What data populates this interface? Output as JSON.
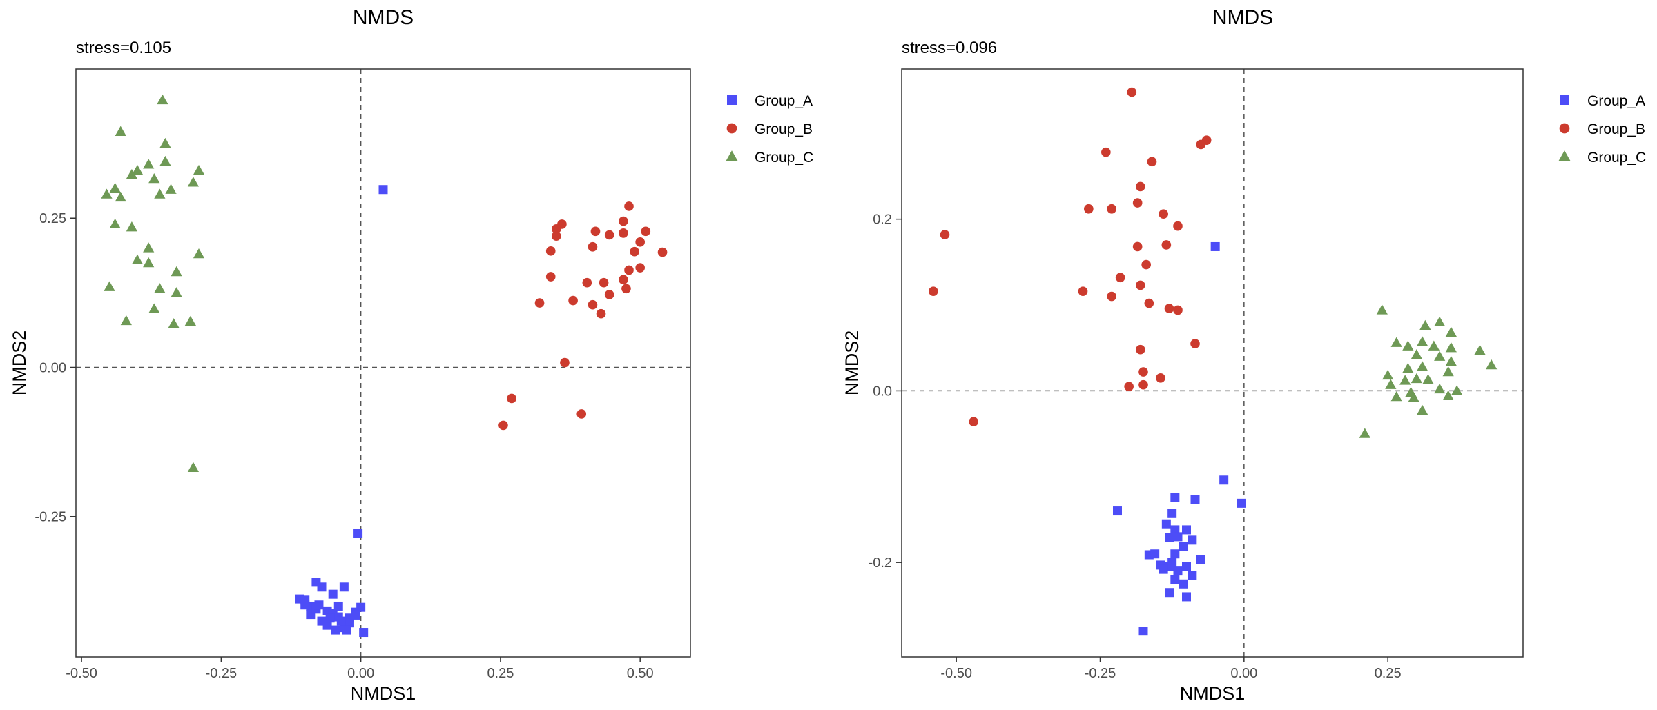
{
  "chart_data": [
    {
      "type": "scatter",
      "title": "NMDS",
      "subtitle": "stress=0.105",
      "xlabel": "NMDS1",
      "ylabel": "NMDS2",
      "xlim": [
        -0.51,
        0.59
      ],
      "ylim": [
        -0.485,
        0.5
      ],
      "xticks": [
        -0.5,
        -0.25,
        0.0,
        0.25,
        0.5
      ],
      "xtick_labels": [
        "-0.50",
        "-0.25",
        "0.00",
        "0.25",
        "0.50"
      ],
      "yticks": [
        -0.25,
        0.0,
        0.25
      ],
      "ytick_labels": [
        "-0.25",
        "0.00",
        "0.25"
      ],
      "zero_lines": true,
      "grid": false,
      "legend": "right",
      "series": [
        {
          "name": "Group_A",
          "shape": "square",
          "color": "#4d4df7",
          "points": [
            [
              0.04,
              0.298
            ],
            [
              -0.005,
              -0.278
            ],
            [
              0.005,
              -0.444
            ],
            [
              -0.11,
              -0.388
            ],
            [
              -0.1,
              -0.39
            ],
            [
              -0.09,
              -0.4
            ],
            [
              -0.08,
              -0.36
            ],
            [
              -0.07,
              -0.368
            ],
            [
              -0.06,
              -0.408
            ],
            [
              -0.05,
              -0.38
            ],
            [
              -0.04,
              -0.4
            ],
            [
              -0.03,
              -0.368
            ],
            [
              -0.02,
              -0.42
            ],
            [
              -0.01,
              -0.41
            ],
            [
              0.0,
              -0.402
            ],
            [
              -0.09,
              -0.414
            ],
            [
              -0.08,
              -0.405
            ],
            [
              -0.07,
              -0.425
            ],
            [
              -0.06,
              -0.432
            ],
            [
              -0.05,
              -0.412
            ],
            [
              -0.04,
              -0.418
            ],
            [
              -0.03,
              -0.436
            ],
            [
              -0.02,
              -0.428
            ],
            [
              -0.01,
              -0.415
            ],
            [
              -0.1,
              -0.398
            ],
            [
              -0.075,
              -0.398
            ],
            [
              -0.055,
              -0.42
            ],
            [
              -0.045,
              -0.44
            ],
            [
              -0.025,
              -0.44
            ],
            [
              -0.035,
              -0.425
            ]
          ]
        },
        {
          "name": "Group_B",
          "shape": "circle",
          "color": "#cc3b2e",
          "points": [
            [
              0.48,
              0.27
            ],
            [
              0.47,
              0.245
            ],
            [
              0.36,
              0.24
            ],
            [
              0.35,
              0.232
            ],
            [
              0.35,
              0.22
            ],
            [
              0.42,
              0.228
            ],
            [
              0.445,
              0.222
            ],
            [
              0.47,
              0.225
            ],
            [
              0.51,
              0.228
            ],
            [
              0.5,
              0.21
            ],
            [
              0.415,
              0.202
            ],
            [
              0.34,
              0.195
            ],
            [
              0.49,
              0.194
            ],
            [
              0.54,
              0.193
            ],
            [
              0.5,
              0.167
            ],
            [
              0.48,
              0.163
            ],
            [
              0.47,
              0.147
            ],
            [
              0.34,
              0.152
            ],
            [
              0.405,
              0.142
            ],
            [
              0.435,
              0.142
            ],
            [
              0.475,
              0.132
            ],
            [
              0.445,
              0.122
            ],
            [
              0.38,
              0.112
            ],
            [
              0.32,
              0.108
            ],
            [
              0.415,
              0.105
            ],
            [
              0.43,
              0.09
            ],
            [
              0.365,
              0.008
            ],
            [
              0.27,
              -0.052
            ],
            [
              0.395,
              -0.078
            ],
            [
              0.255,
              -0.097
            ]
          ]
        },
        {
          "name": "Group_C",
          "shape": "triangle",
          "color": "#6e9955",
          "points": [
            [
              -0.355,
              0.448
            ],
            [
              -0.43,
              0.395
            ],
            [
              -0.35,
              0.375
            ],
            [
              -0.38,
              0.34
            ],
            [
              -0.35,
              0.345
            ],
            [
              -0.4,
              0.33
            ],
            [
              -0.29,
              0.33
            ],
            [
              -0.41,
              0.323
            ],
            [
              -0.37,
              0.316
            ],
            [
              -0.3,
              0.31
            ],
            [
              -0.44,
              0.3
            ],
            [
              -0.34,
              0.298
            ],
            [
              -0.36,
              0.29
            ],
            [
              -0.455,
              0.29
            ],
            [
              -0.43,
              0.285
            ],
            [
              -0.44,
              0.24
            ],
            [
              -0.41,
              0.235
            ],
            [
              -0.38,
              0.2
            ],
            [
              -0.29,
              0.19
            ],
            [
              -0.4,
              0.18
            ],
            [
              -0.38,
              0.175
            ],
            [
              -0.33,
              0.16
            ],
            [
              -0.45,
              0.135
            ],
            [
              -0.36,
              0.132
            ],
            [
              -0.33,
              0.125
            ],
            [
              -0.37,
              0.098
            ],
            [
              -0.42,
              0.078
            ],
            [
              -0.305,
              0.077
            ],
            [
              -0.335,
              0.073
            ],
            [
              -0.3,
              -0.168
            ]
          ]
        }
      ]
    },
    {
      "type": "scatter",
      "title": "NMDS",
      "subtitle": "stress=0.096",
      "xlabel": "NMDS1",
      "ylabel": "NMDS2",
      "xlim": [
        -0.595,
        0.485
      ],
      "ylim": [
        -0.31,
        0.375
      ],
      "xticks": [
        -0.5,
        -0.25,
        0.0,
        0.25
      ],
      "xtick_labels": [
        "-0.50",
        "-0.25",
        "0.00",
        "0.25"
      ],
      "yticks": [
        -0.2,
        0.0,
        0.2
      ],
      "ytick_labels": [
        "-0.2",
        "0.0",
        "0.2"
      ],
      "zero_lines": true,
      "grid": false,
      "legend": "right",
      "series": [
        {
          "name": "Group_A",
          "shape": "square",
          "color": "#4d4df7",
          "points": [
            [
              -0.05,
              0.168
            ],
            [
              -0.035,
              -0.104
            ],
            [
              -0.005,
              -0.131
            ],
            [
              -0.22,
              -0.14
            ],
            [
              -0.12,
              -0.124
            ],
            [
              -0.085,
              -0.127
            ],
            [
              -0.125,
              -0.143
            ],
            [
              -0.135,
              -0.155
            ],
            [
              -0.12,
              -0.162
            ],
            [
              -0.1,
              -0.162
            ],
            [
              -0.13,
              -0.171
            ],
            [
              -0.115,
              -0.17
            ],
            [
              -0.09,
              -0.174
            ],
            [
              -0.105,
              -0.181
            ],
            [
              -0.12,
              -0.19
            ],
            [
              -0.165,
              -0.191
            ],
            [
              -0.155,
              -0.19
            ],
            [
              -0.075,
              -0.197
            ],
            [
              -0.125,
              -0.2
            ],
            [
              -0.145,
              -0.203
            ],
            [
              -0.13,
              -0.205
            ],
            [
              -0.1,
              -0.205
            ],
            [
              -0.14,
              -0.208
            ],
            [
              -0.115,
              -0.21
            ],
            [
              -0.09,
              -0.215
            ],
            [
              -0.12,
              -0.22
            ],
            [
              -0.105,
              -0.225
            ],
            [
              -0.13,
              -0.235
            ],
            [
              -0.1,
              -0.24
            ],
            [
              -0.175,
              -0.28
            ]
          ]
        },
        {
          "name": "Group_B",
          "shape": "circle",
          "color": "#cc3b2e",
          "points": [
            [
              -0.195,
              0.348
            ],
            [
              -0.065,
              0.292
            ],
            [
              -0.075,
              0.287
            ],
            [
              -0.24,
              0.278
            ],
            [
              -0.16,
              0.267
            ],
            [
              -0.18,
              0.238
            ],
            [
              -0.185,
              0.219
            ],
            [
              -0.27,
              0.212
            ],
            [
              -0.23,
              0.212
            ],
            [
              -0.14,
              0.206
            ],
            [
              -0.115,
              0.192
            ],
            [
              -0.52,
              0.182
            ],
            [
              -0.185,
              0.168
            ],
            [
              -0.135,
              0.17
            ],
            [
              -0.17,
              0.147
            ],
            [
              -0.215,
              0.132
            ],
            [
              -0.18,
              0.123
            ],
            [
              -0.28,
              0.116
            ],
            [
              -0.54,
              0.116
            ],
            [
              -0.23,
              0.11
            ],
            [
              -0.165,
              0.102
            ],
            [
              -0.13,
              0.096
            ],
            [
              -0.115,
              0.094
            ],
            [
              -0.085,
              0.055
            ],
            [
              -0.18,
              0.048
            ],
            [
              -0.175,
              0.022
            ],
            [
              -0.145,
              0.015
            ],
            [
              -0.2,
              0.005
            ],
            [
              -0.175,
              0.007
            ],
            [
              -0.47,
              -0.036
            ]
          ]
        },
        {
          "name": "Group_C",
          "shape": "triangle",
          "color": "#6e9955",
          "points": [
            [
              0.24,
              0.094
            ],
            [
              0.34,
              0.08
            ],
            [
              0.315,
              0.076
            ],
            [
              0.36,
              0.068
            ],
            [
              0.265,
              0.056
            ],
            [
              0.31,
              0.057
            ],
            [
              0.285,
              0.052
            ],
            [
              0.33,
              0.052
            ],
            [
              0.36,
              0.05
            ],
            [
              0.41,
              0.047
            ],
            [
              0.3,
              0.042
            ],
            [
              0.34,
              0.04
            ],
            [
              0.36,
              0.034
            ],
            [
              0.43,
              0.03
            ],
            [
              0.31,
              0.028
            ],
            [
              0.285,
              0.026
            ],
            [
              0.355,
              0.022
            ],
            [
              0.25,
              0.018
            ],
            [
              0.3,
              0.014
            ],
            [
              0.32,
              0.013
            ],
            [
              0.28,
              0.012
            ],
            [
              0.255,
              0.007
            ],
            [
              0.34,
              0.002
            ],
            [
              0.37,
              0.0
            ],
            [
              0.29,
              -0.002
            ],
            [
              0.265,
              -0.007
            ],
            [
              0.295,
              -0.008
            ],
            [
              0.355,
              -0.006
            ],
            [
              0.31,
              -0.023
            ],
            [
              0.21,
              -0.05
            ]
          ]
        }
      ]
    }
  ]
}
